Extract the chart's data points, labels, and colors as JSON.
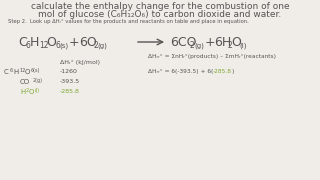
{
  "bg_color": "#f0ede8",
  "text_color": "#555555",
  "highlight_color": "#7da832",
  "title1": "calculate the enthalpy change for the combustion of one",
  "title2": "mol of glucose (C₆H₁₂O₆) to carbon dioxide and water.",
  "step_text": "Step 2.  Look up ΔHᵣ° values for the products and reactants on table and place in equation.",
  "table_header": "ΔHᵣ° (kJ/mol)",
  "row1_value": "-1260",
  "row2_value": "-393.5",
  "row3_value": "-285.8",
  "delta_def": "ΔHᵣᵣ° = ΣnHᵣ°(products) – ΣmHᵣ°(reactants)",
  "delta_calc_prefix": "ΔHᵣᵣ° = 6(-393.5) + 6(",
  "delta_calc_highlight": "-285.8",
  "delta_calc_suffix": ")",
  "fs_title": 6.5,
  "fs_step": 3.8,
  "fs_eq_main": 9.0,
  "fs_eq_sub": 5.5,
  "fs_eq_state": 5.0,
  "fs_table": 4.5,
  "fs_delta": 4.2
}
